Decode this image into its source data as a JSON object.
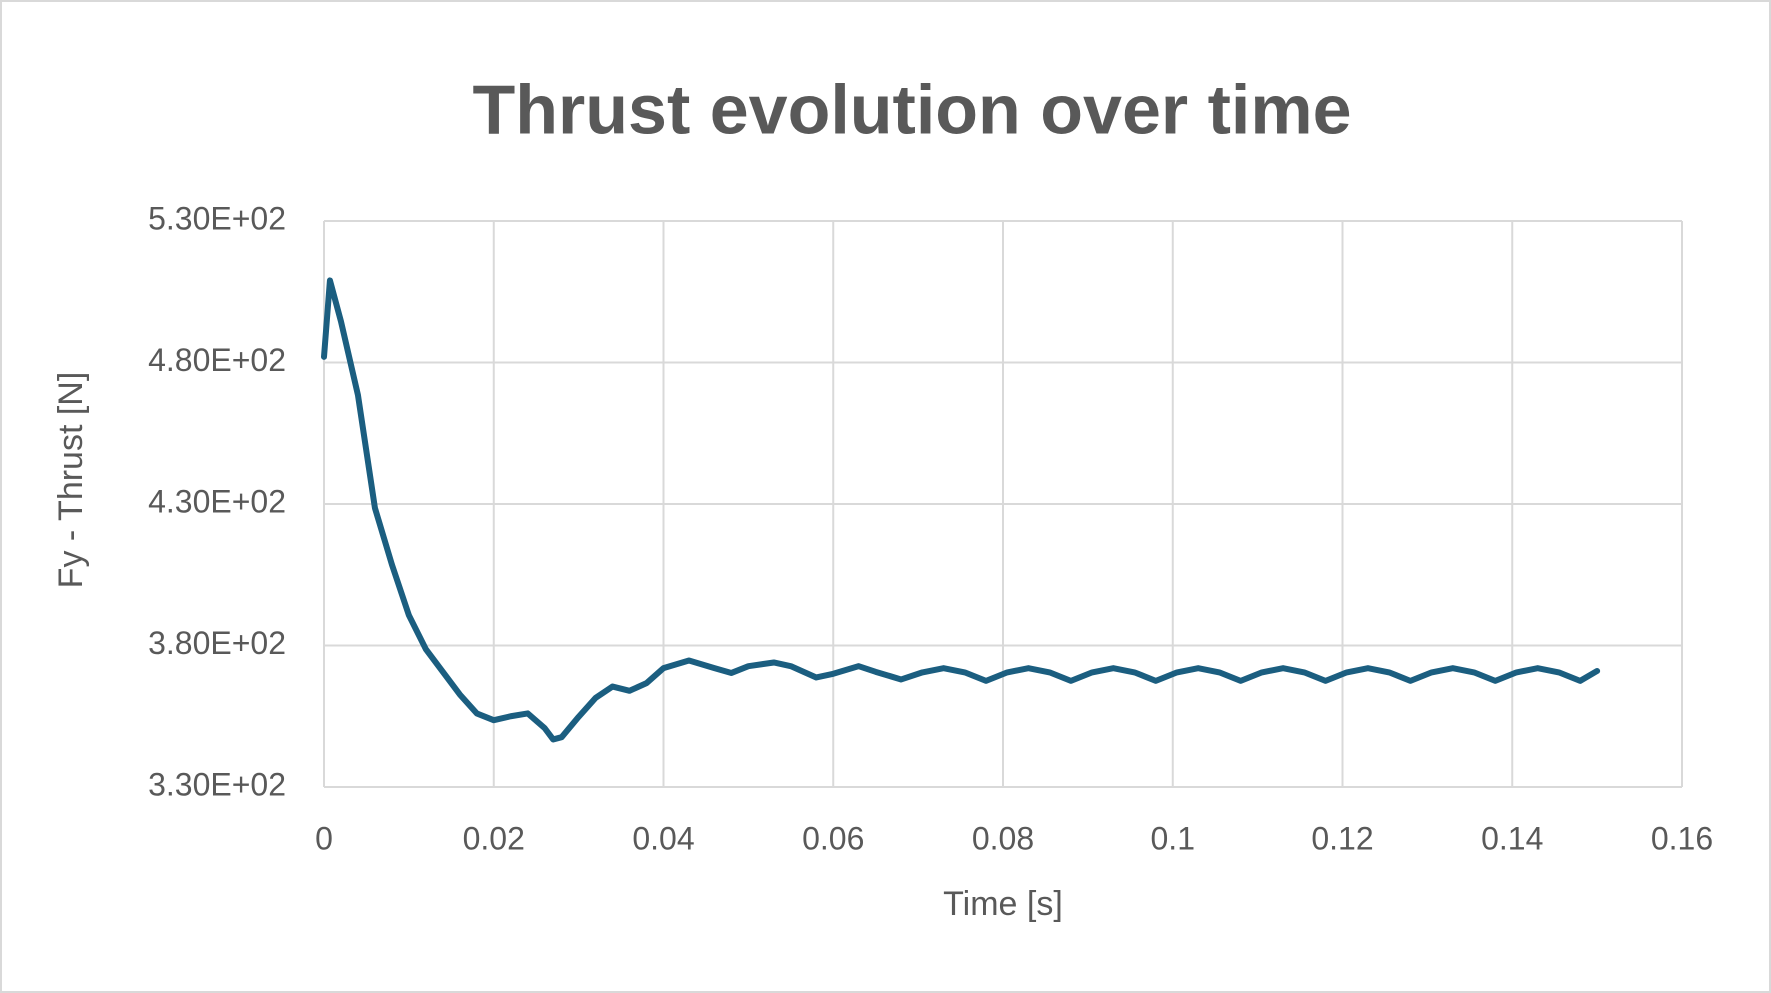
{
  "chart_data": {
    "type": "line",
    "title": "Thrust evolution over time",
    "xlabel": "Time [s]",
    "ylabel": "Fy - Thrust [N]",
    "x": [
      0,
      0.0007,
      0.002,
      0.004,
      0.006,
      0.008,
      0.01,
      0.012,
      0.014,
      0.016,
      0.018,
      0.02,
      0.022,
      0.024,
      0.026,
      0.027,
      0.028,
      0.03,
      0.032,
      0.034,
      0.036,
      0.038,
      0.04,
      0.043,
      0.046,
      0.048,
      0.05,
      0.053,
      0.055,
      0.058,
      0.06,
      0.063,
      0.065,
      0.068,
      0.0705,
      0.073,
      0.0755,
      0.078,
      0.0805,
      0.083,
      0.0855,
      0.088,
      0.0905,
      0.093,
      0.0955,
      0.098,
      0.1005,
      0.103,
      0.1055,
      0.108,
      0.1105,
      0.113,
      0.1155,
      0.118,
      0.1205,
      0.123,
      0.1255,
      0.128,
      0.1305,
      0.133,
      0.1355,
      0.138,
      0.1405,
      0.143,
      0.1455,
      0.148,
      0.15
    ],
    "series": [
      {
        "name": "Fy - Thrust [N]",
        "color": "#1b5e80",
        "values": [
          482,
          509,
          494.5,
          468.5,
          428.6,
          408.6,
          390.7,
          378.7,
          370.7,
          362.7,
          356,
          353.6,
          355,
          356,
          350.8,
          346.8,
          347.6,
          354.8,
          361.5,
          365.5,
          364,
          366.7,
          372,
          374.7,
          372,
          370.3,
          372.7,
          374,
          372.7,
          368.7,
          370,
          372.7,
          370.7,
          368,
          370.5,
          372,
          370.5,
          367.5,
          370.5,
          372,
          370.5,
          367.5,
          370.5,
          372,
          370.5,
          367.5,
          370.5,
          372,
          370.5,
          367.5,
          370.5,
          372,
          370.5,
          367.5,
          370.5,
          372,
          370.5,
          367.5,
          370.5,
          372,
          370.5,
          367.5,
          370.5,
          372,
          370.5,
          367.5,
          371
        ]
      }
    ],
    "xlim": [
      0,
      0.16
    ],
    "xticks": [
      0,
      0.02,
      0.04,
      0.06,
      0.08,
      0.1,
      0.12,
      0.14,
      0.16
    ],
    "ylim": [
      330,
      530
    ],
    "yticks": [
      {
        "value": 330,
        "label": "3.30E+02"
      },
      {
        "value": 380,
        "label": "3.80E+02"
      },
      {
        "value": 430,
        "label": "4.30E+02"
      },
      {
        "value": 480,
        "label": "4.80E+02"
      },
      {
        "value": 530,
        "label": "5.30E+02"
      }
    ],
    "grid": true
  }
}
